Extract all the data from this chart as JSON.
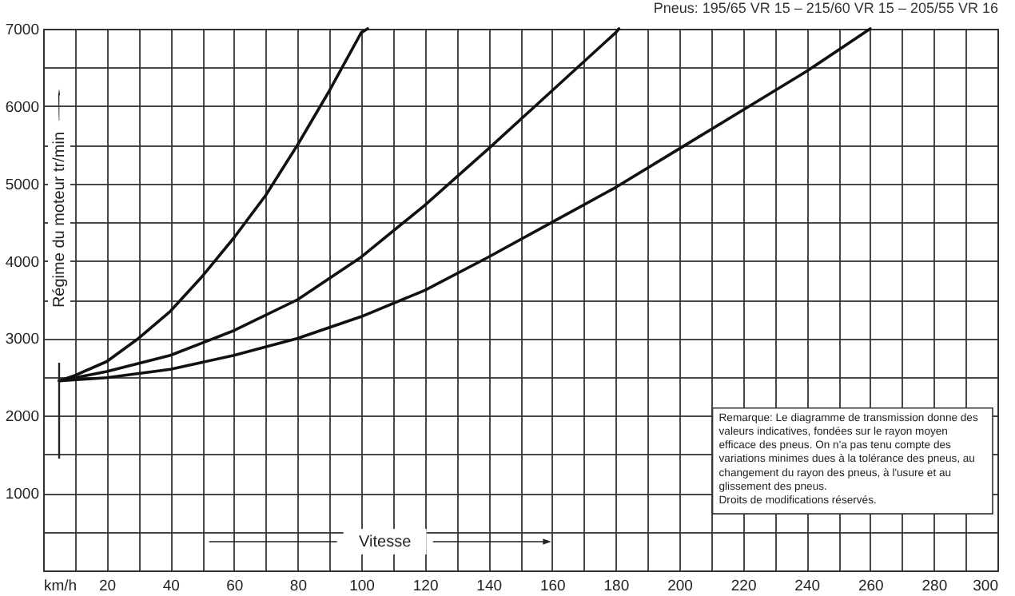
{
  "chart_data": {
    "type": "line",
    "title": "Pneus: 195/65 VR 15 – 215/60 VR 15 – 205/55 VR 16",
    "xlabel": "Vitesse",
    "ylabel": "Régime du moteur tr/min",
    "annotations": [
      "Remarque: Le diagramme de transmission donne des valeurs indicatives, fondées sur le rayon moyen efficace des pneus. On n'a pas tenu compte des variations minimes dues à la tolérance des pneus, au changement du rayon des pneus, à l'usure et au glissement des pneus.\nDroits de modifications réservés."
    ],
    "series": [
      {
        "color": "#111111",
        "x": [
          5,
          10,
          20,
          30,
          40,
          50,
          60,
          70,
          80,
          90,
          100,
          102
        ],
        "values": [
          2450,
          2520,
          2700,
          3000,
          3350,
          3800,
          4300,
          4850,
          5500,
          6200,
          6950,
          7000
        ]
      },
      {
        "color": "#111111",
        "x": [
          5,
          20,
          40,
          60,
          80,
          100,
          120,
          140,
          160,
          180,
          181
        ],
        "values": [
          2450,
          2570,
          2780,
          3100,
          3500,
          4050,
          4720,
          5450,
          6200,
          6950,
          7000
        ]
      },
      {
        "color": "#111111",
        "x": [
          5,
          20,
          40,
          60,
          80,
          100,
          120,
          140,
          160,
          180,
          200,
          220,
          240,
          260
        ],
        "values": [
          2450,
          2490,
          2600,
          2780,
          3000,
          3280,
          3620,
          4050,
          4500,
          4950,
          5450,
          5950,
          6450,
          7000
        ]
      }
    ],
    "xlim": [
      0,
      300
    ],
    "ylim": [
      0,
      7000
    ],
    "xticks": [
      {
        "value": 0,
        "label": "km/h"
      },
      {
        "value": 10,
        "label": null
      },
      20,
      {
        "value": 30,
        "label": null
      },
      40,
      {
        "value": 50,
        "label": null
      },
      60,
      {
        "value": 70,
        "label": null
      },
      80,
      {
        "value": 90,
        "label": null
      },
      100,
      {
        "value": 110,
        "label": null
      },
      120,
      {
        "value": 130,
        "label": null
      },
      140,
      {
        "value": 150,
        "label": null
      },
      160,
      {
        "value": 170,
        "label": null
      },
      180,
      {
        "value": 190,
        "label": null
      },
      200,
      {
        "value": 210,
        "label": null
      },
      220,
      {
        "value": 230,
        "label": null
      },
      240,
      {
        "value": 250,
        "label": null
      },
      260,
      {
        "value": 270,
        "label": null
      },
      280,
      {
        "value": 290,
        "label": null
      },
      300
    ],
    "yticks": [
      {
        "value": 0,
        "label": null
      },
      {
        "value": 500,
        "label": null
      },
      1000,
      {
        "value": 1500,
        "label": null
      },
      2000,
      {
        "value": 2500,
        "label": null
      },
      3000,
      {
        "value": 3500,
        "label": null
      },
      4000,
      {
        "value": 4500,
        "label": null
      },
      5000,
      {
        "value": 5500,
        "label": null
      },
      6000,
      {
        "value": 6500,
        "label": null
      },
      7000
    ],
    "grid": true,
    "marker": "none",
    "line_style": "solid"
  }
}
